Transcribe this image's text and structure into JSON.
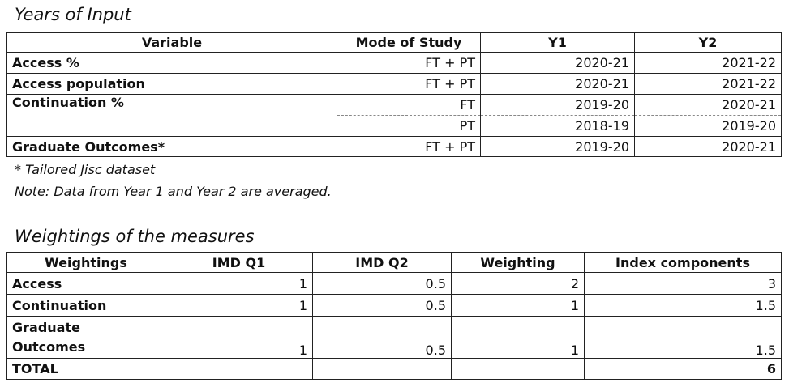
{
  "years_of_input": {
    "title": "Years of Input",
    "header": [
      "Variable",
      "Mode of Study",
      "Y1",
      "Y2"
    ],
    "rows": [
      [
        "Access %",
        "FT + PT",
        "2020-21",
        "2021-22"
      ],
      [
        "Access population",
        "FT + PT",
        "2020-21",
        "2021-22"
      ],
      [
        "Continuation %",
        "FT",
        "2019-20",
        "2020-21"
      ],
      [
        "PT",
        "2018-19",
        "2019-20"
      ],
      [
        "Graduate Outcomes*",
        "FT + PT",
        "2019-20",
        "2020-21"
      ]
    ],
    "footnote": "* Tailored Jisc dataset",
    "note": "Note: Data from Year 1 and Year 2 are averaged."
  },
  "weightings": {
    "title": "Weightings of the measures",
    "header": [
      "Weightings",
      "IMD Q1",
      "IMD Q2",
      "Weighting",
      "Index components"
    ],
    "rows": [
      [
        "Access",
        1,
        0.5,
        2,
        3
      ],
      [
        "Continuation",
        1,
        0.5,
        1,
        1.5
      ],
      [
        "Graduate Outcomes",
        1,
        0.5,
        1,
        1.5
      ]
    ],
    "total_label": "TOTAL",
    "total": 6
  }
}
